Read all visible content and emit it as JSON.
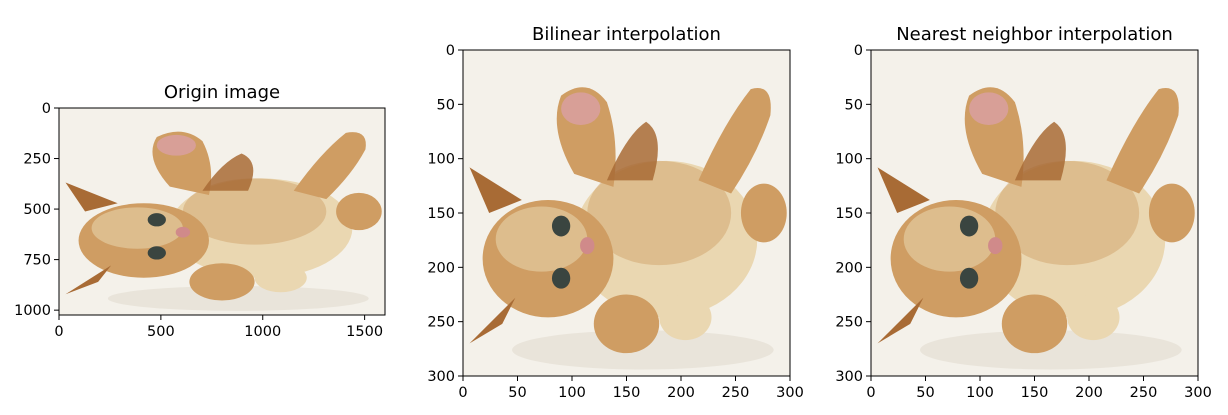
{
  "figure": {
    "background": "#ffffff",
    "panels": [
      {
        "title": "Origin image",
        "image_width": 1600,
        "image_height": 1024,
        "xticks": [
          0,
          500,
          1000,
          1500
        ],
        "yticks": [
          0,
          250,
          500,
          750,
          1000
        ],
        "xlim": [
          0,
          1600
        ],
        "ylim": [
          0,
          1024
        ]
      },
      {
        "title": "Bilinear interpolation",
        "image_width": 300,
        "image_height": 300,
        "xticks": [
          0,
          50,
          100,
          150,
          200,
          250,
          300
        ],
        "yticks": [
          0,
          50,
          100,
          150,
          200,
          250,
          300
        ],
        "xlim": [
          0,
          300
        ],
        "ylim": [
          0,
          300
        ]
      },
      {
        "title": "Nearest neighbor interpolation",
        "image_width": 300,
        "image_height": 300,
        "xticks": [
          0,
          50,
          100,
          150,
          200,
          250,
          300
        ],
        "yticks": [
          0,
          50,
          100,
          150,
          200,
          250,
          300
        ],
        "xlim": [
          0,
          300
        ],
        "ylim": [
          0,
          300
        ]
      }
    ],
    "colors": {
      "image_bg": "#f4f1ea",
      "fur_light": "#ead7b1",
      "fur": "#cf9d63",
      "fur_dark": "#a86b35",
      "paw_pad": "#d9a0a0",
      "eye": "#3a4540",
      "nose": "#d08a8a",
      "axis": "#000000"
    }
  }
}
